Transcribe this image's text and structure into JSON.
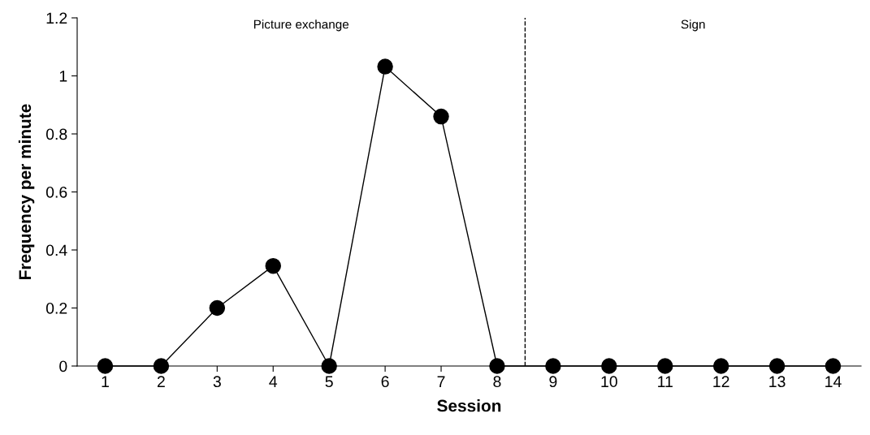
{
  "chart_data": {
    "type": "line",
    "xlabel": "Session",
    "ylabel": "Frequency per minute",
    "x": [
      1,
      2,
      3,
      4,
      5,
      6,
      7,
      8,
      9,
      10,
      11,
      12,
      13,
      14
    ],
    "series": [
      {
        "color": "#000000",
        "values": [
          0,
          0,
          0.2,
          0.345,
          0,
          1.032,
          0.86,
          0,
          0,
          0,
          0,
          0,
          0,
          0
        ]
      }
    ],
    "xlim": [
      0.5,
      14.5
    ],
    "xticks": [
      1,
      2,
      3,
      4,
      5,
      6,
      7,
      8,
      9,
      10,
      11,
      12,
      13,
      14
    ],
    "ylim": [
      0,
      1.2
    ],
    "yticks": [
      0,
      0.2,
      0.4,
      0.6,
      0.8,
      1,
      1.2
    ],
    "ref_lines": [
      {
        "axis": "x",
        "value": 8.5,
        "color": "#000000",
        "line_style": "dashed"
      }
    ],
    "annotations": [
      "Picture exchange",
      "Sign"
    ],
    "marker": "circle",
    "line_style": "solid",
    "grid": false,
    "legend": false
  }
}
